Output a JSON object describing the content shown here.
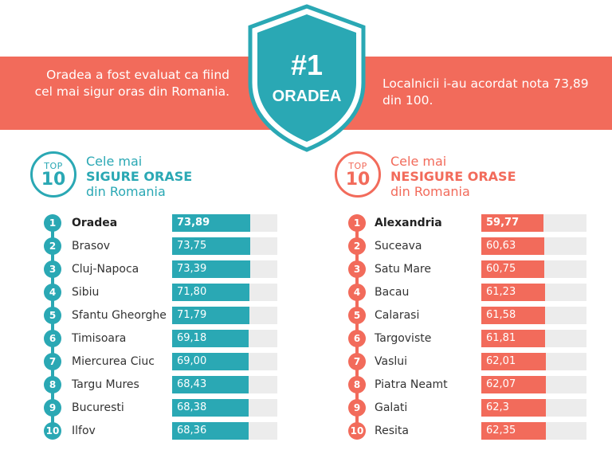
{
  "banner": {
    "left_text": "Oradea a fost evaluat ca fiind cel mai sigur oras din Romania.",
    "right_text": "Localnicii i-au acordat nota 73,89 din 100.",
    "shield_rank": "#1",
    "shield_city": "ORADEA"
  },
  "colors": {
    "teal": "#2aa8b4",
    "coral": "#f26b5b",
    "track": "#ececec"
  },
  "chart_data": [
    {
      "type": "bar",
      "badge_top": "TOP",
      "badge_num": "10",
      "title_line1": "Cele mai",
      "title_line2": "SIGURE ORASE",
      "title_line3": "din Romania",
      "categories": [
        "Oradea",
        "Brasov",
        "Cluj-Napoca",
        "Sibiu",
        "Sfantu Gheorghe",
        "Timisoara",
        "Miercurea Ciuc",
        "Targu Mures",
        "Bucuresti",
        "Ilfov"
      ],
      "ranks": [
        "1",
        "2",
        "3",
        "4",
        "5",
        "6",
        "7",
        "8",
        "9",
        "10"
      ],
      "labels": [
        "73,89",
        "73,75",
        "73,39",
        "71,80",
        "71,79",
        "69,18",
        "69,00",
        "68,43",
        "68,38",
        "68,36"
      ],
      "values": [
        73.89,
        73.75,
        73.39,
        71.8,
        71.79,
        69.18,
        69.0,
        68.43,
        68.38,
        68.36
      ]
    },
    {
      "type": "bar",
      "badge_top": "TOP",
      "badge_num": "10",
      "title_line1": "Cele mai",
      "title_line2": "NESIGURE ORASE",
      "title_line3": "din Romania",
      "categories": [
        "Alexandria",
        "Suceava",
        "Satu Mare",
        "Bacau",
        "Calarasi",
        "Targoviste",
        "Vaslui",
        "Piatra Neamt",
        "Galati",
        "Resita"
      ],
      "ranks": [
        "1",
        "2",
        "3",
        "4",
        "5",
        "6",
        "7",
        "8",
        "9",
        "10"
      ],
      "labels": [
        "59,77",
        "60,63",
        "60,75",
        "61,23",
        "61,58",
        "61,81",
        "62,01",
        "62,07",
        "62,3",
        "62,35"
      ],
      "values": [
        59.77,
        60.63,
        60.75,
        61.23,
        61.58,
        61.81,
        62.01,
        62.07,
        62.3,
        62.35
      ]
    }
  ]
}
